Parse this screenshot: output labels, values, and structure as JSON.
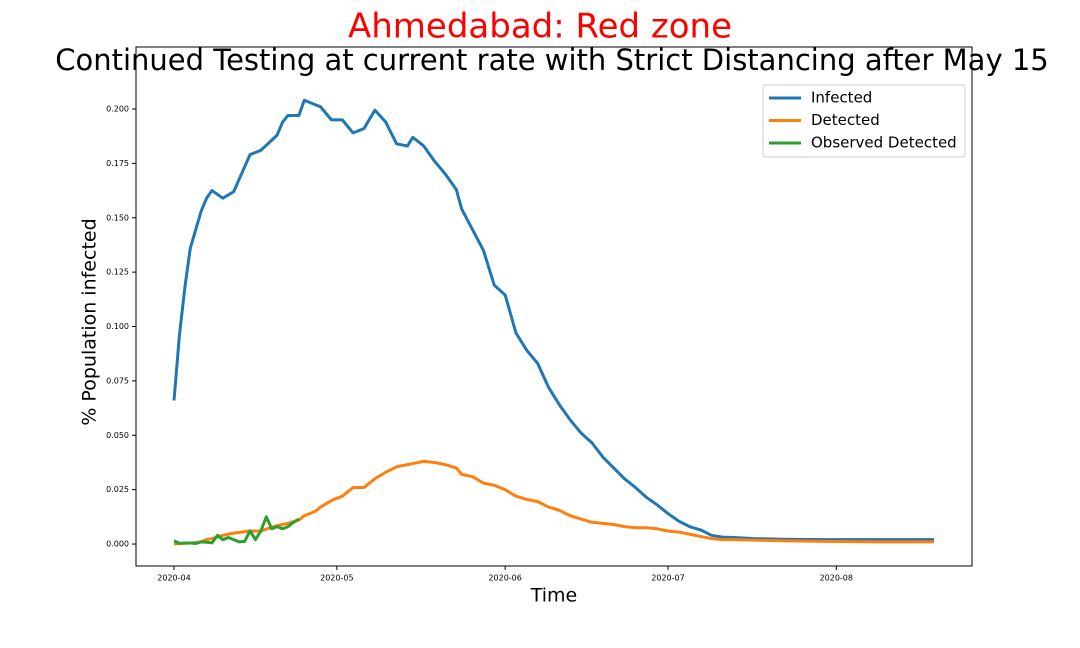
{
  "chart_data": {
    "type": "line",
    "title": "Ahmedabad: Red zone",
    "subtitle": "Continued Testing at current rate with Strict Distancing after May 15",
    "x_label": "Time",
    "y_label": "% Population infected",
    "xlim": [
      -7,
      147
    ],
    "xticks": [
      {
        "value": 0,
        "label": "2020-04"
      },
      {
        "value": 30,
        "label": "2020-05"
      },
      {
        "value": 61,
        "label": "2020-06"
      },
      {
        "value": 91,
        "label": "2020-07"
      },
      {
        "value": 122,
        "label": "2020-08"
      }
    ],
    "ylim": [
      -0.0101,
      0.2285
    ],
    "yticks": [
      {
        "value": 0,
        "label": "0.000"
      },
      {
        "value": 0.025,
        "label": "0.025"
      },
      {
        "value": 0.05,
        "label": "0.050"
      },
      {
        "value": 0.075,
        "label": "0.075"
      },
      {
        "value": 0.1,
        "label": "0.100"
      },
      {
        "value": 0.125,
        "label": "0.125"
      },
      {
        "value": 0.15,
        "label": "0.150"
      },
      {
        "value": 0.175,
        "label": "0.175"
      },
      {
        "value": 0.2,
        "label": "0.200"
      }
    ],
    "legend": "upper right",
    "series": [
      {
        "name": "Infected",
        "color": "#1f77b4",
        "x": [
          0,
          1,
          2,
          3,
          5,
          6,
          7,
          9,
          11,
          14,
          16,
          19,
          20,
          21,
          23,
          24,
          26,
          27,
          29,
          31,
          33,
          35,
          37,
          39,
          41,
          43,
          44,
          46,
          48,
          50,
          52,
          53,
          55,
          57,
          59,
          61,
          63,
          65,
          67,
          69,
          71,
          73,
          75,
          77,
          79,
          81,
          83,
          85,
          87,
          89,
          91,
          93,
          95,
          97,
          99,
          101,
          103,
          107,
          112,
          120,
          130,
          140
        ],
        "values": [
          0.066,
          0.096,
          0.118,
          0.136,
          0.153,
          0.159,
          0.1625,
          0.159,
          0.162,
          0.179,
          0.181,
          0.188,
          0.194,
          0.197,
          0.197,
          0.204,
          0.202,
          0.201,
          0.195,
          0.195,
          0.189,
          0.191,
          0.1995,
          0.194,
          0.184,
          0.183,
          0.187,
          0.183,
          0.176,
          0.17,
          0.163,
          0.154,
          0.1445,
          0.135,
          0.119,
          0.1145,
          0.097,
          0.089,
          0.083,
          0.072,
          0.064,
          0.057,
          0.051,
          0.0465,
          0.04,
          0.035,
          0.03,
          0.026,
          0.0215,
          0.018,
          0.014,
          0.0105,
          0.008,
          0.0065,
          0.004,
          0.0032,
          0.003,
          0.0025,
          0.0022,
          0.002,
          0.002,
          0.002
        ]
      },
      {
        "name": "Detected",
        "color": "#ff7f0e",
        "x": [
          0,
          1,
          2,
          3,
          5,
          6,
          7,
          9,
          11,
          14,
          16,
          19,
          20,
          21,
          23,
          24,
          26,
          27,
          29,
          31,
          33,
          35,
          37,
          39,
          41,
          43,
          44,
          46,
          48,
          50,
          52,
          53,
          55,
          57,
          59,
          61,
          63,
          65,
          67,
          69,
          71,
          73,
          75,
          77,
          79,
          81,
          83,
          85,
          87,
          89,
          91,
          93,
          95,
          97,
          99,
          101,
          103,
          107,
          112,
          120,
          130,
          140
        ],
        "values": [
          0,
          0.0002,
          0.0003,
          0.0005,
          0.001,
          0.002,
          0.0025,
          0.004,
          0.005,
          0.006,
          0.006,
          0.0085,
          0.009,
          0.0095,
          0.011,
          0.013,
          0.015,
          0.017,
          0.02,
          0.022,
          0.026,
          0.026,
          0.03,
          0.033,
          0.0355,
          0.0365,
          0.037,
          0.038,
          0.0375,
          0.0365,
          0.035,
          0.032,
          0.031,
          0.028,
          0.027,
          0.025,
          0.022,
          0.0205,
          0.0195,
          0.017,
          0.0155,
          0.013,
          0.0115,
          0.01,
          0.0095,
          0.009,
          0.008,
          0.0075,
          0.0075,
          0.007,
          0.006,
          0.0055,
          0.0045,
          0.0035,
          0.0025,
          0.002,
          0.002,
          0.0018,
          0.0015,
          0.0012,
          0.001,
          0.001
        ]
      },
      {
        "name": "Observed Detected",
        "color": "#2ca02c",
        "x": [
          0,
          1,
          2,
          3,
          4,
          5,
          6,
          7,
          8,
          9,
          10,
          11,
          12,
          13,
          14,
          15,
          16,
          17,
          18,
          19,
          20,
          21,
          22,
          23
        ],
        "values": [
          0.0015,
          0.0003,
          0.0005,
          0.0005,
          0.0002,
          0.001,
          0.0008,
          0.0005,
          0.004,
          0.002,
          0.003,
          0.002,
          0.001,
          0.0012,
          0.006,
          0.002,
          0.006,
          0.0125,
          0.007,
          0.008,
          0.007,
          0.008,
          0.01,
          0.0115
        ]
      }
    ]
  }
}
